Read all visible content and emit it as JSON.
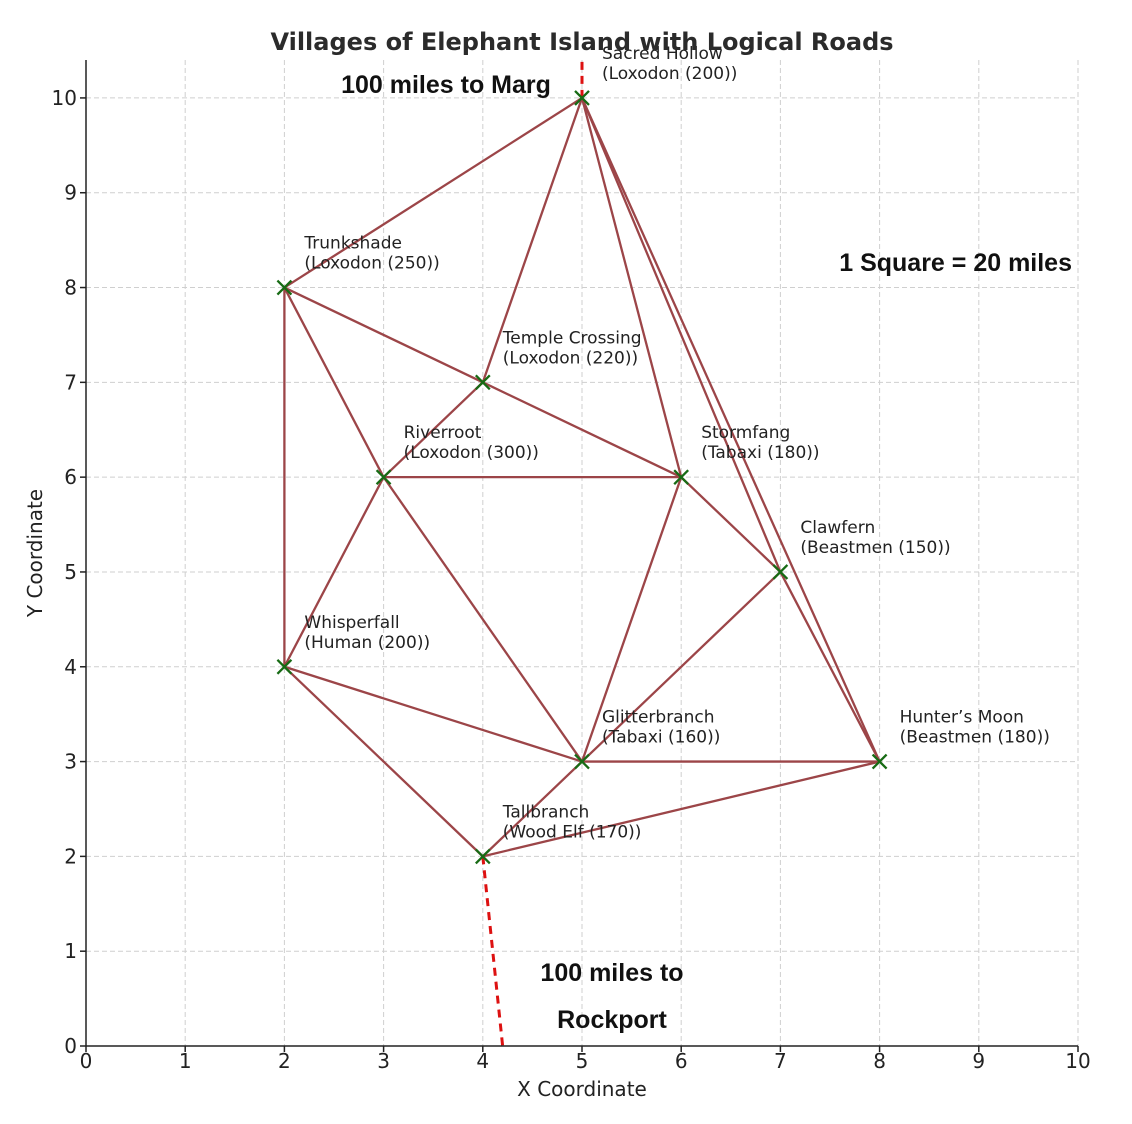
{
  "chart_data": {
    "type": "scatter",
    "title": "Villages of Elephant Island with Logical Roads",
    "xlabel": "X Coordinate",
    "ylabel": "Y Coordinate",
    "xlim": [
      0,
      10
    ],
    "ylim": [
      0,
      10.4
    ],
    "xticks": [
      0,
      1,
      2,
      3,
      4,
      5,
      6,
      7,
      8,
      9,
      10
    ],
    "yticks": [
      0,
      1,
      2,
      3,
      4,
      5,
      6,
      7,
      8,
      9,
      10
    ],
    "grid": true,
    "villages": [
      {
        "name": "Sacred Hollow",
        "race": "(Loxodon (200))",
        "x": 5,
        "y": 10
      },
      {
        "name": "Trunkshade",
        "race": "(Loxodon (250))",
        "x": 2,
        "y": 8
      },
      {
        "name": "Temple Crossing",
        "race": "(Loxodon (220))",
        "x": 4,
        "y": 7
      },
      {
        "name": "Riverroot",
        "race": "(Loxodon (300))",
        "x": 3,
        "y": 6
      },
      {
        "name": "Stormfang",
        "race": "(Tabaxi (180))",
        "x": 6,
        "y": 6
      },
      {
        "name": "Clawfern",
        "race": "(Beastmen (150))",
        "x": 7,
        "y": 5
      },
      {
        "name": "Whisperfall",
        "race": "(Human (200))",
        "x": 2,
        "y": 4
      },
      {
        "name": "Glitterbranch",
        "race": "(Tabaxi (160))",
        "x": 5,
        "y": 3
      },
      {
        "name": "Hunter’s Moon",
        "race": "(Beastmen (180))",
        "x": 8,
        "y": 3
      },
      {
        "name": "Tallbranch",
        "race": "(Wood Elf (170))",
        "x": 4,
        "y": 2
      }
    ],
    "roads": [
      [
        "Sacred Hollow",
        "Trunkshade"
      ],
      [
        "Sacred Hollow",
        "Temple Crossing"
      ],
      [
        "Sacred Hollow",
        "Stormfang"
      ],
      [
        "Sacred Hollow",
        "Clawfern"
      ],
      [
        "Sacred Hollow",
        "Hunter’s Moon"
      ],
      [
        "Trunkshade",
        "Temple Crossing"
      ],
      [
        "Trunkshade",
        "Riverroot"
      ],
      [
        "Trunkshade",
        "Whisperfall"
      ],
      [
        "Temple Crossing",
        "Riverroot"
      ],
      [
        "Temple Crossing",
        "Stormfang"
      ],
      [
        "Riverroot",
        "Stormfang"
      ],
      [
        "Riverroot",
        "Whisperfall"
      ],
      [
        "Riverroot",
        "Glitterbranch"
      ],
      [
        "Stormfang",
        "Clawfern"
      ],
      [
        "Stormfang",
        "Glitterbranch"
      ],
      [
        "Clawfern",
        "Glitterbranch"
      ],
      [
        "Clawfern",
        "Hunter’s Moon"
      ],
      [
        "Whisperfall",
        "Glitterbranch"
      ],
      [
        "Whisperfall",
        "Tallbranch"
      ],
      [
        "Glitterbranch",
        "Hunter’s Moon"
      ],
      [
        "Glitterbranch",
        "Tallbranch"
      ],
      [
        "Tallbranch",
        "Hunter’s Moon"
      ]
    ],
    "external_roads": [
      {
        "from": "Sacred Hollow",
        "to": [
          5.0,
          10.4
        ],
        "label": "100 miles to Marg"
      },
      {
        "from": "Tallbranch",
        "to": [
          4.2,
          0
        ],
        "label_lines": [
          "100 miles to",
          "Rockport"
        ]
      }
    ],
    "annotations": {
      "scale": "1 Square = 20 miles",
      "marg": "100 miles to Marg",
      "rockport_line1": "100 miles to",
      "rockport_line2": "Rockport"
    },
    "colors": {
      "road": "#9c4548",
      "external_road": "#dd1111",
      "marker": "#176b14",
      "grid": "#cfcfcf"
    }
  }
}
